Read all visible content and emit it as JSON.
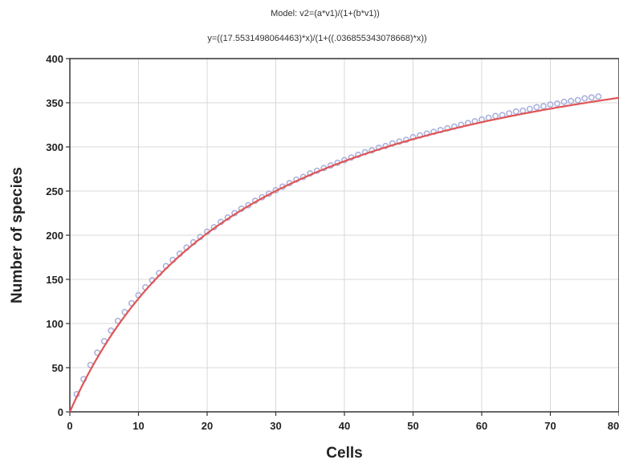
{
  "chart_data": {
    "type": "scatter",
    "title": "Model: v2=(a*v1)/(1+(b*v1))",
    "subtitle": "y=((17.5531498064463)*x)/(1+((.036855343078668)*x))",
    "xlabel": "Cells",
    "ylabel": "Number of species",
    "xlim": [
      0,
      80
    ],
    "ylim": [
      0,
      400
    ],
    "xticks": [
      0,
      10,
      20,
      30,
      40,
      50,
      60,
      70,
      80
    ],
    "yticks": [
      0,
      50,
      100,
      150,
      200,
      250,
      300,
      350,
      400
    ],
    "grid": true,
    "series": [
      {
        "kind": "points",
        "color": "#aab2dd",
        "x": [
          1,
          2,
          3,
          4,
          5,
          6,
          7,
          8,
          9,
          10,
          11,
          12,
          13,
          14,
          15,
          16,
          17,
          18,
          19,
          20,
          21,
          22,
          23,
          24,
          25,
          26,
          27,
          28,
          29,
          30,
          31,
          32,
          33,
          34,
          35,
          36,
          37,
          38,
          39,
          40,
          41,
          42,
          43,
          44,
          45,
          46,
          47,
          48,
          49,
          50,
          51,
          52,
          53,
          54,
          55,
          56,
          57,
          58,
          59,
          60,
          61,
          62,
          63,
          64,
          65,
          66,
          67,
          68,
          69,
          70,
          71,
          72,
          73,
          74,
          75,
          76,
          77
        ],
        "y": [
          20,
          37,
          53,
          67,
          80,
          92,
          103,
          113,
          123,
          132,
          141,
          149,
          157,
          165,
          172,
          179,
          186,
          192,
          198,
          204,
          209,
          215,
          220,
          225,
          230,
          234,
          239,
          243,
          247,
          251,
          255,
          259,
          263,
          266,
          270,
          273,
          276,
          279,
          282,
          285,
          288,
          291,
          294,
          296,
          299,
          301,
          304,
          306,
          308,
          311,
          313,
          315,
          317,
          319,
          321,
          323,
          325,
          327,
          329,
          331,
          333,
          335,
          336,
          338,
          340,
          341,
          343,
          345,
          346,
          348,
          349,
          351,
          352,
          353,
          355,
          356,
          357
        ]
      },
      {
        "kind": "fit-curve",
        "color": "#e05555",
        "a": 17.5531498064463,
        "b": 0.036855343078668
      }
    ]
  }
}
